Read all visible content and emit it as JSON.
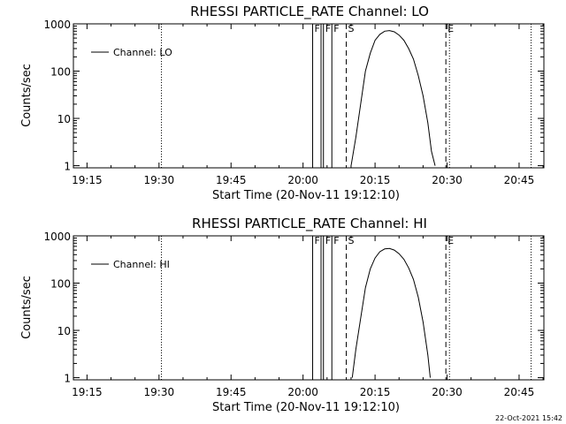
{
  "footer": {
    "timestamp": "22-Oct-2021 15:42"
  },
  "chart_data": [
    {
      "type": "line",
      "title": "RHESSI PARTICLE_RATE Channel: LO",
      "xlabel": "Start Time (20-Nov-11 19:12:10)",
      "ylabel": "Counts/sec",
      "yscale": "log",
      "ylim": [
        0.9,
        1000
      ],
      "xlim": [
        "19:12:10",
        "20:50:10"
      ],
      "x_ticks": [
        "19:15",
        "19:30",
        "19:45",
        "20:00",
        "20:15",
        "20:30",
        "20:45"
      ],
      "y_ticks": [
        "1",
        "10",
        "100",
        "1000"
      ],
      "grid": false,
      "legend": {
        "position": "top-left",
        "entries": [
          "Channel: LO"
        ]
      },
      "series": [
        {
          "name": "Channel: LO",
          "x": [
            "20:10:00",
            "20:11:00",
            "20:12:00",
            "20:13:00",
            "20:14:00",
            "20:15:00",
            "20:16:00",
            "20:17:00",
            "20:18:00",
            "20:19:00",
            "20:20:00",
            "20:21:00",
            "20:22:00",
            "20:23:00",
            "20:24:00",
            "20:25:00",
            "20:26:00",
            "20:26:45",
            "20:27:30"
          ],
          "y": [
            1,
            4,
            20,
            100,
            240,
            450,
            600,
            700,
            720,
            680,
            580,
            450,
            300,
            180,
            80,
            30,
            8,
            2,
            1
          ]
        }
      ],
      "vertical_markers": [
        {
          "label": "",
          "x": "19:30:30",
          "style": "dotted"
        },
        {
          "label": "F",
          "x": "20:02:00",
          "style": "solid"
        },
        {
          "label": "",
          "x": "20:03:45",
          "style": "solid"
        },
        {
          "label": "F",
          "x": "20:04:15",
          "style": "solid"
        },
        {
          "label": "F",
          "x": "20:06:00",
          "style": "solid"
        },
        {
          "label": "S",
          "x": "20:09:00",
          "style": "dashed"
        },
        {
          "label": "E",
          "x": "20:29:45",
          "style": "dashed"
        },
        {
          "label": "",
          "x": "20:30:30",
          "style": "dotted"
        },
        {
          "label": "",
          "x": "20:47:30",
          "style": "dotted"
        }
      ]
    },
    {
      "type": "line",
      "title": "RHESSI PARTICLE_RATE Channel: HI",
      "xlabel": "Start Time (20-Nov-11 19:12:10)",
      "ylabel": "Counts/sec",
      "yscale": "log",
      "ylim": [
        0.9,
        1000
      ],
      "xlim": [
        "19:12:10",
        "20:50:10"
      ],
      "x_ticks": [
        "19:15",
        "19:30",
        "19:45",
        "20:00",
        "20:15",
        "20:30",
        "20:45"
      ],
      "y_ticks": [
        "1",
        "10",
        "100",
        "1000"
      ],
      "grid": false,
      "legend": {
        "position": "top-left",
        "entries": [
          "Channel: HI"
        ]
      },
      "series": [
        {
          "name": "Channel: HI",
          "x": [
            "20:10:15",
            "20:11:00",
            "20:12:00",
            "20:13:00",
            "20:14:00",
            "20:15:00",
            "20:16:00",
            "20:17:00",
            "20:18:00",
            "20:19:00",
            "20:20:00",
            "20:21:00",
            "20:22:00",
            "20:23:00",
            "20:24:00",
            "20:25:00",
            "20:26:00",
            "20:26:30"
          ],
          "y": [
            1,
            4,
            18,
            80,
            200,
            340,
            460,
            530,
            540,
            500,
            420,
            320,
            210,
            120,
            50,
            15,
            3,
            1
          ]
        }
      ],
      "vertical_markers": [
        {
          "label": "",
          "x": "19:30:30",
          "style": "dotted"
        },
        {
          "label": "F",
          "x": "20:02:00",
          "style": "solid"
        },
        {
          "label": "",
          "x": "20:03:45",
          "style": "solid"
        },
        {
          "label": "F",
          "x": "20:04:15",
          "style": "solid"
        },
        {
          "label": "F",
          "x": "20:06:00",
          "style": "solid"
        },
        {
          "label": "S",
          "x": "20:09:00",
          "style": "dashed"
        },
        {
          "label": "E",
          "x": "20:29:45",
          "style": "dashed"
        },
        {
          "label": "",
          "x": "20:30:30",
          "style": "dotted"
        },
        {
          "label": "",
          "x": "20:47:30",
          "style": "dotted"
        }
      ]
    }
  ]
}
